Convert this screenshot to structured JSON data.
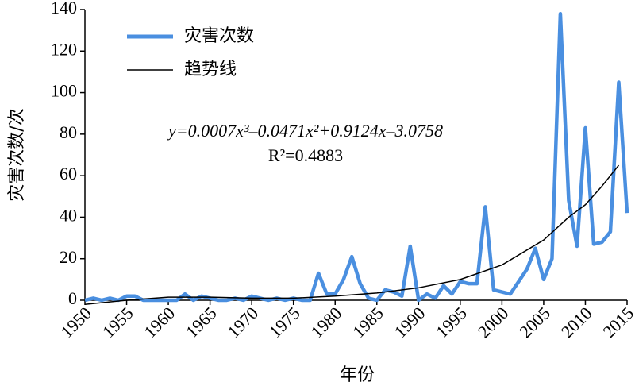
{
  "chart_data": {
    "type": "line",
    "x": [
      1950,
      1951,
      1952,
      1953,
      1954,
      1955,
      1956,
      1957,
      1958,
      1959,
      1960,
      1961,
      1962,
      1963,
      1964,
      1965,
      1966,
      1967,
      1968,
      1969,
      1970,
      1971,
      1972,
      1973,
      1974,
      1975,
      1976,
      1977,
      1978,
      1979,
      1980,
      1981,
      1982,
      1983,
      1984,
      1985,
      1986,
      1987,
      1988,
      1989,
      1990,
      1991,
      1992,
      1993,
      1994,
      1995,
      1996,
      1997,
      1998,
      1999,
      2000,
      2001,
      2002,
      2003,
      2004,
      2005,
      2006,
      2007,
      2008,
      2009,
      2010,
      2011,
      2012,
      2013,
      2014,
      2015
    ],
    "series": [
      {
        "name": "灾害次数",
        "color": "#4a8fe0",
        "values": [
          0,
          1,
          0,
          1,
          0,
          2,
          2,
          0,
          0,
          0,
          0,
          0,
          3,
          0,
          2,
          1,
          0,
          0,
          1,
          0,
          2,
          1,
          0,
          1,
          0,
          1,
          0,
          0,
          13,
          3,
          3,
          10,
          21,
          8,
          1,
          0,
          5,
          4,
          2,
          26,
          0,
          3,
          1,
          7,
          3,
          9,
          8,
          8,
          45,
          5,
          4,
          3,
          9,
          15,
          25,
          10,
          20,
          138,
          48,
          26,
          83,
          27,
          28,
          33,
          105,
          42
        ]
      },
      {
        "name": "趋势线",
        "color": "#000000",
        "x": [
          1950,
          1955,
          1960,
          1965,
          1970,
          1975,
          1980,
          1985,
          1990,
          1995,
          2000,
          2005,
          2008,
          2010,
          2012,
          2014
        ],
        "values": [
          -2,
          0,
          1.5,
          1.5,
          1,
          1,
          2,
          3.5,
          6,
          10,
          17,
          29,
          40,
          46,
          55,
          65
        ]
      }
    ],
    "annotations": [
      "y=0.0007x³–0.0471x²+0.9124x–3.0758",
      "R²=0.4883"
    ],
    "xlabel": "年份",
    "ylabel": "灾害次数/次",
    "xlim": [
      1950,
      2015
    ],
    "xticks": [
      1950,
      1955,
      1960,
      1965,
      1970,
      1975,
      1980,
      1985,
      1990,
      1995,
      2000,
      2005,
      2010,
      2015
    ],
    "ylim": [
      0,
      140
    ],
    "yticks": [
      0,
      20,
      40,
      60,
      80,
      100,
      120,
      140
    ],
    "legend": "upper left"
  }
}
